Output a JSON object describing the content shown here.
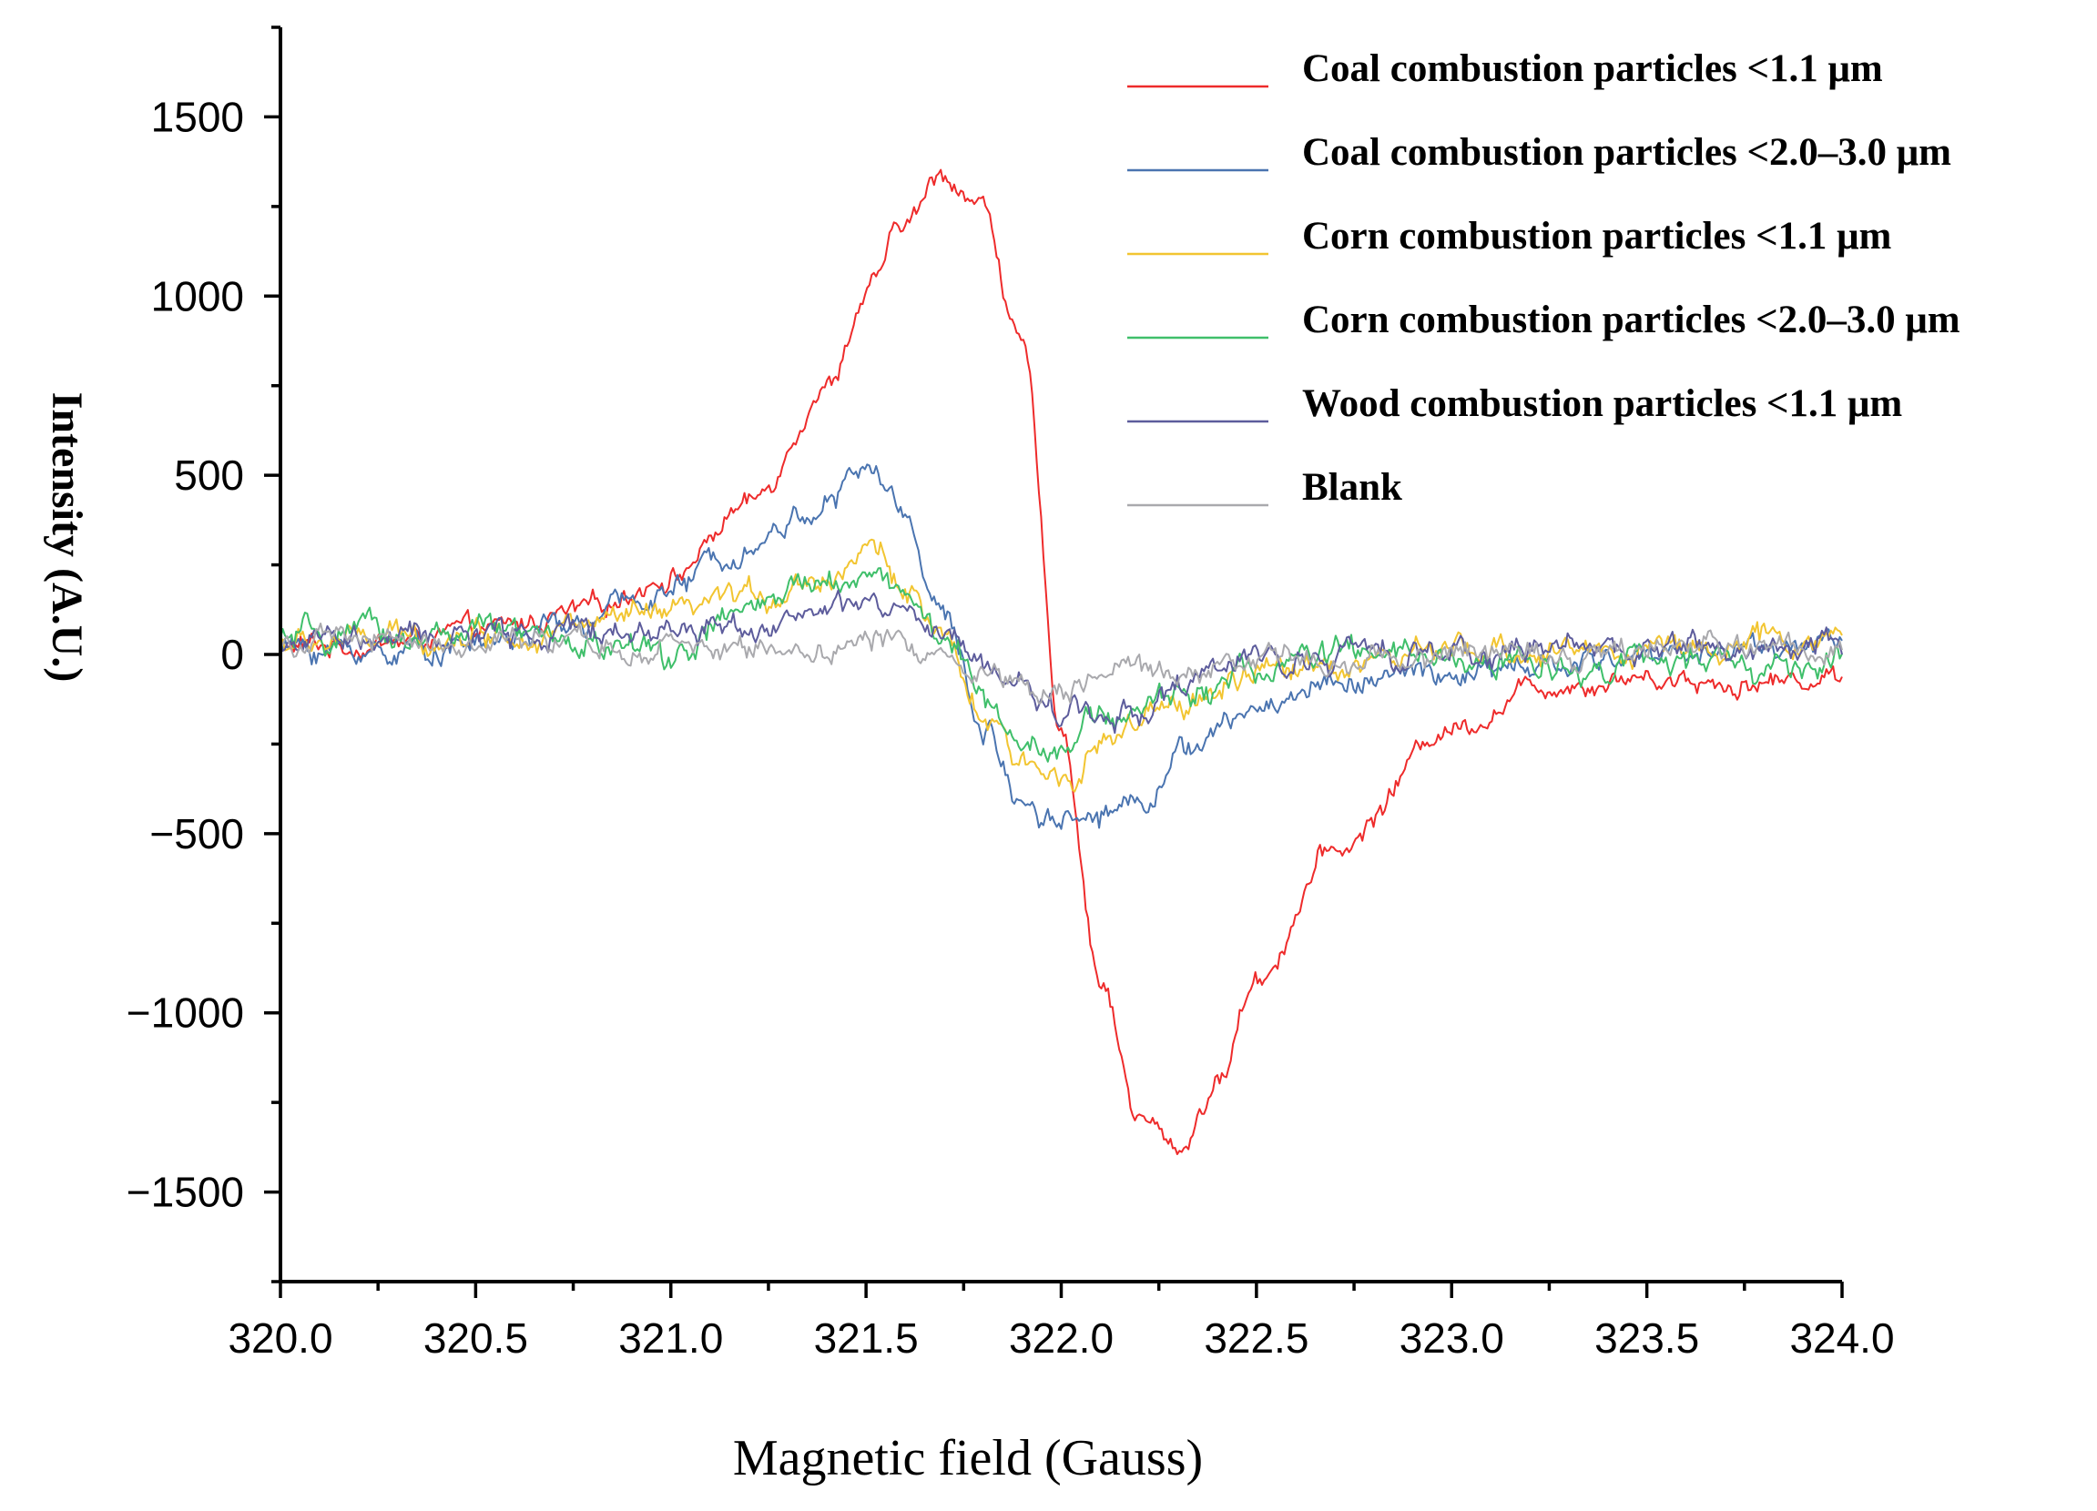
{
  "chart_data": {
    "type": "line",
    "title": "",
    "xlabel": "Magnetic field (Gauss)",
    "ylabel": "Intensity (A.U.)",
    "xlim": [
      320.0,
      324.0
    ],
    "ylim": [
      -1750,
      1750
    ],
    "grid": false,
    "legend_position": "top-right",
    "x_ticks": [
      320.0,
      320.5,
      321.0,
      321.5,
      322.0,
      322.5,
      323.0,
      323.5,
      324.0
    ],
    "x_tick_labels": [
      "320.0",
      "320.5",
      "321.0",
      "321.5",
      "322.0",
      "322.5",
      "323.0",
      "323.5",
      "324.0"
    ],
    "y_ticks": [
      1500,
      1000,
      500,
      0,
      -500,
      -1000,
      -1500
    ],
    "y_tick_labels": [
      "1500",
      "1000",
      "500",
      "0",
      "−500",
      "−1000",
      "−1500"
    ],
    "x": [
      320.0,
      320.25,
      320.5,
      320.75,
      321.0,
      321.2,
      321.4,
      321.5,
      321.6,
      321.7,
      321.8,
      321.9,
      322.0,
      322.1,
      322.2,
      322.3,
      322.4,
      322.5,
      322.7,
      323.0,
      323.25,
      323.5,
      323.75,
      324.0
    ],
    "series": [
      {
        "name": "Coal combustion particles <1.1 μm",
        "color": "#ee2b2b",
        "values": [
          20,
          30,
          60,
          110,
          220,
          420,
          750,
          1000,
          1200,
          1340,
          1250,
          850,
          -200,
          -900,
          -1300,
          -1380,
          -1200,
          -900,
          -550,
          -200,
          -80,
          -60,
          -80,
          -60
        ]
      },
      {
        "name": "Coal combustion particles <2.0–3.0 μm",
        "color": "#4a74b0",
        "values": [
          20,
          10,
          30,
          80,
          180,
          320,
          420,
          520,
          400,
          100,
          -200,
          -400,
          -450,
          -440,
          -400,
          -280,
          -220,
          -150,
          -70,
          -60,
          -40,
          0,
          20,
          40
        ]
      },
      {
        "name": "Corn combustion particles <1.1 μm",
        "color": "#f2c531",
        "values": [
          30,
          40,
          60,
          80,
          100,
          160,
          220,
          300,
          200,
          20,
          -180,
          -320,
          -330,
          -250,
          -200,
          -150,
          -100,
          -60,
          -20,
          0,
          10,
          20,
          30,
          40
        ]
      },
      {
        "name": "Corn combustion particles <2.0–3.0 μm",
        "color": "#3fbf6a",
        "values": [
          40,
          50,
          60,
          30,
          0,
          120,
          200,
          240,
          180,
          40,
          -120,
          -230,
          -240,
          -190,
          -150,
          -110,
          -80,
          -40,
          0,
          -20,
          -30,
          -20,
          -40,
          -40
        ]
      },
      {
        "name": "Wood combustion particles <1.1 μm",
        "color": "#5d5c9c",
        "values": [
          30,
          40,
          50,
          60,
          70,
          90,
          110,
          140,
          100,
          40,
          -30,
          -100,
          -150,
          -170,
          -150,
          -100,
          -50,
          -20,
          0,
          10,
          20,
          20,
          20,
          30
        ]
      },
      {
        "name": "Blank",
        "color": "#a9a9ad",
        "values": [
          30,
          40,
          30,
          20,
          10,
          20,
          20,
          40,
          30,
          0,
          -40,
          -70,
          -80,
          -70,
          -60,
          -50,
          -30,
          -20,
          -10,
          0,
          10,
          20,
          20,
          30
        ]
      }
    ]
  }
}
